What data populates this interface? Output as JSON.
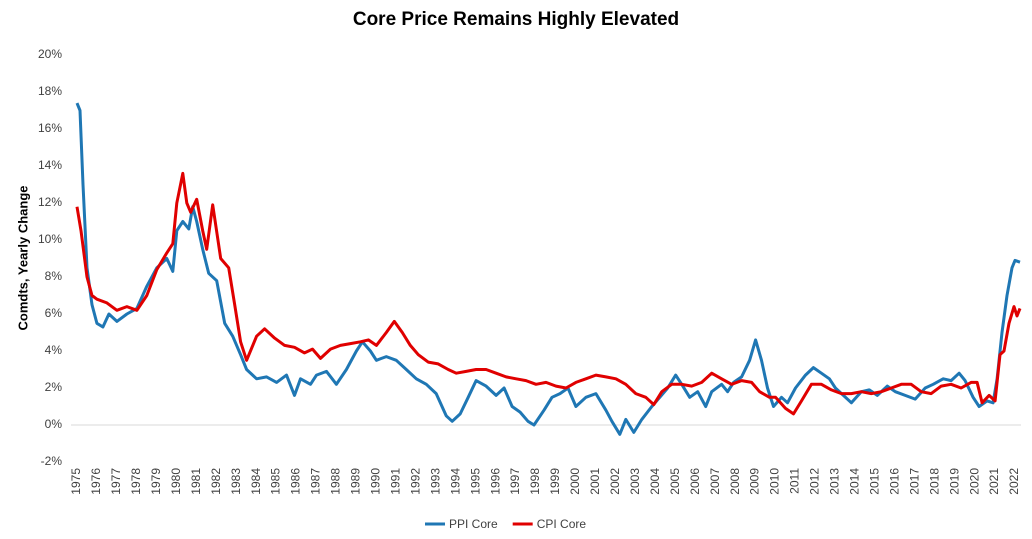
{
  "chart_data": {
    "type": "line",
    "title": "Core Price Remains Highly Elevated",
    "y_label": "Comdts, Yearly Change",
    "xlim": [
      1974.7,
      2022.3
    ],
    "xticks": [
      1975,
      1976,
      1977,
      1978,
      1979,
      1980,
      1981,
      1982,
      1983,
      1984,
      1985,
      1986,
      1987,
      1988,
      1989,
      1990,
      1991,
      1992,
      1993,
      1994,
      1995,
      1996,
      1997,
      1998,
      1999,
      2000,
      2001,
      2002,
      2003,
      2004,
      2005,
      2006,
      2007,
      2008,
      2009,
      2010,
      2011,
      2012,
      2013,
      2014,
      2015,
      2016,
      2017,
      2018,
      2019,
      2020,
      2021,
      2022
    ],
    "ylim": [
      -2,
      20
    ],
    "yticks": [
      {
        "value": -2,
        "label": "-2%"
      },
      {
        "value": 0,
        "label": "0%"
      },
      {
        "value": 2,
        "label": "2%"
      },
      {
        "value": 4,
        "label": "4%"
      },
      {
        "value": 6,
        "label": "6%"
      },
      {
        "value": 8,
        "label": "8%"
      },
      {
        "value": 10,
        "label": "10%"
      },
      {
        "value": 12,
        "label": "12%"
      },
      {
        "value": 14,
        "label": "14%"
      },
      {
        "value": 16,
        "label": "16%"
      },
      {
        "value": 18,
        "label": "18%"
      },
      {
        "value": 20,
        "label": "20%"
      }
    ],
    "grid": false,
    "legend": "bottom",
    "series": [
      {
        "name": "PPI Core",
        "color": "#1f77b4",
        "x": [
          1975.0,
          1975.15,
          1975.3,
          1975.5,
          1975.75,
          1976.0,
          1976.3,
          1976.6,
          1977.0,
          1977.5,
          1978.0,
          1978.5,
          1979.0,
          1979.5,
          1979.8,
          1980.0,
          1980.3,
          1980.6,
          1980.8,
          1981.0,
          1981.3,
          1981.6,
          1982.0,
          1982.4,
          1982.8,
          1983.2,
          1983.5,
          1984.0,
          1984.5,
          1985.0,
          1985.5,
          1985.9,
          1986.2,
          1986.7,
          1987.0,
          1987.5,
          1988.0,
          1988.5,
          1989.0,
          1989.3,
          1989.7,
          1990.0,
          1990.5,
          1991.0,
          1991.5,
          1992.0,
          1992.5,
          1993.0,
          1993.5,
          1993.8,
          1994.2,
          1994.6,
          1995.0,
          1995.5,
          1996.0,
          1996.4,
          1996.8,
          1997.2,
          1997.6,
          1997.9,
          1998.4,
          1998.8,
          1999.2,
          1999.6,
          2000.0,
          2000.5,
          2001.0,
          2001.5,
          2001.8,
          2002.2,
          2002.5,
          2002.9,
          2003.3,
          2003.8,
          2004.2,
          2004.6,
          2005.0,
          2005.3,
          2005.7,
          2006.1,
          2006.5,
          2006.8,
          2007.3,
          2007.6,
          2007.9,
          2008.3,
          2008.7,
          2009.0,
          2009.3,
          2009.6,
          2009.9,
          2010.3,
          2010.6,
          2011.0,
          2011.5,
          2011.9,
          2012.3,
          2012.7,
          2013.0,
          2013.4,
          2013.8,
          2014.3,
          2014.7,
          2015.1,
          2015.6,
          2016.0,
          2016.5,
          2017.0,
          2017.5,
          2017.9,
          2018.4,
          2018.8,
          2019.2,
          2019.5,
          2019.9,
          2020.2,
          2020.6,
          2020.9,
          2021.1,
          2021.35,
          2021.6,
          2021.85,
          2022.0,
          2022.25
        ],
        "values": [
          17.4,
          17.0,
          13,
          8.5,
          6.5,
          5.5,
          5.3,
          6.0,
          5.6,
          6.0,
          6.3,
          7.5,
          8.5,
          9.0,
          8.3,
          10.5,
          11.0,
          10.6,
          11.8,
          11.0,
          9.5,
          8.2,
          7.8,
          5.5,
          4.8,
          3.8,
          3.0,
          2.5,
          2.6,
          2.3,
          2.7,
          1.6,
          2.5,
          2.2,
          2.7,
          2.9,
          2.2,
          3.0,
          4.0,
          4.5,
          4.0,
          3.5,
          3.7,
          3.5,
          3.0,
          2.5,
          2.2,
          1.7,
          0.5,
          0.2,
          0.6,
          1.5,
          2.4,
          2.1,
          1.6,
          2.0,
          1.0,
          0.7,
          0.2,
          0.0,
          0.8,
          1.5,
          1.7,
          2.0,
          1.0,
          1.5,
          1.7,
          0.8,
          0.2,
          -0.5,
          0.3,
          -0.4,
          0.3,
          1.0,
          1.5,
          2.0,
          2.7,
          2.2,
          1.5,
          1.8,
          1.0,
          1.8,
          2.2,
          1.8,
          2.3,
          2.6,
          3.5,
          4.6,
          3.5,
          2.0,
          1.0,
          1.5,
          1.2,
          2.0,
          2.7,
          3.1,
          2.8,
          2.5,
          2.0,
          1.6,
          1.2,
          1.8,
          1.9,
          1.6,
          2.1,
          1.8,
          1.6,
          1.4,
          2.0,
          2.2,
          2.5,
          2.4,
          2.8,
          2.4,
          1.5,
          1.0,
          1.3,
          1.2,
          2.5,
          5.0,
          7.0,
          8.5,
          8.9,
          8.8
        ]
      },
      {
        "name": "CPI Core",
        "color": "#e00000",
        "x": [
          1975.0,
          1975.2,
          1975.5,
          1975.75,
          1976.0,
          1976.5,
          1977.0,
          1977.5,
          1978.0,
          1978.5,
          1979.0,
          1979.5,
          1979.8,
          1980.0,
          1980.3,
          1980.5,
          1980.7,
          1981.0,
          1981.3,
          1981.5,
          1981.8,
          1982.2,
          1982.6,
          1982.9,
          1983.2,
          1983.5,
          1984.0,
          1984.4,
          1984.9,
          1985.4,
          1985.9,
          1986.4,
          1986.8,
          1987.2,
          1987.7,
          1988.2,
          1988.7,
          1989.2,
          1989.6,
          1990.0,
          1990.5,
          1990.9,
          1991.3,
          1991.7,
          1992.1,
          1992.6,
          1993.1,
          1993.6,
          1994.0,
          1994.5,
          1995.0,
          1995.5,
          1996.0,
          1996.5,
          1997.0,
          1997.5,
          1998.0,
          1998.5,
          1999.0,
          1999.5,
          2000.0,
          2000.5,
          2001.0,
          2001.5,
          2002.0,
          2002.5,
          2003.0,
          2003.5,
          2003.9,
          2004.3,
          2004.8,
          2005.3,
          2005.8,
          2006.3,
          2006.8,
          2007.3,
          2007.8,
          2008.3,
          2008.8,
          2009.2,
          2009.7,
          2010.0,
          2010.5,
          2010.9,
          2011.3,
          2011.8,
          2012.3,
          2012.8,
          2013.3,
          2013.8,
          2014.3,
          2014.8,
          2015.3,
          2015.8,
          2016.3,
          2016.8,
          2017.3,
          2017.8,
          2018.3,
          2018.8,
          2019.3,
          2019.8,
          2020.1,
          2020.35,
          2020.7,
          2021.0,
          2021.25,
          2021.45,
          2021.7,
          2021.95,
          2022.1,
          2022.25
        ],
        "values": [
          11.8,
          10.5,
          8.0,
          7.0,
          6.8,
          6.6,
          6.2,
          6.4,
          6.2,
          7.0,
          8.4,
          9.3,
          9.8,
          12.0,
          13.6,
          12.0,
          11.5,
          12.2,
          10.5,
          9.5,
          11.9,
          9.0,
          8.5,
          6.5,
          4.5,
          3.5,
          4.8,
          5.2,
          4.7,
          4.3,
          4.2,
          3.9,
          4.1,
          3.6,
          4.1,
          4.3,
          4.4,
          4.5,
          4.6,
          4.3,
          5.0,
          5.6,
          5.0,
          4.3,
          3.8,
          3.4,
          3.3,
          3.0,
          2.8,
          2.9,
          3.0,
          3.0,
          2.8,
          2.6,
          2.5,
          2.4,
          2.2,
          2.3,
          2.1,
          2.0,
          2.3,
          2.5,
          2.7,
          2.6,
          2.5,
          2.2,
          1.7,
          1.5,
          1.1,
          1.8,
          2.2,
          2.2,
          2.1,
          2.3,
          2.8,
          2.5,
          2.2,
          2.4,
          2.3,
          1.8,
          1.5,
          1.5,
          0.9,
          0.6,
          1.3,
          2.2,
          2.2,
          1.9,
          1.7,
          1.7,
          1.8,
          1.7,
          1.8,
          2.0,
          2.2,
          2.2,
          1.8,
          1.7,
          2.1,
          2.2,
          2.0,
          2.3,
          2.3,
          1.2,
          1.6,
          1.3,
          3.8,
          4.0,
          5.5,
          6.4,
          5.9,
          6.3
        ]
      }
    ]
  }
}
